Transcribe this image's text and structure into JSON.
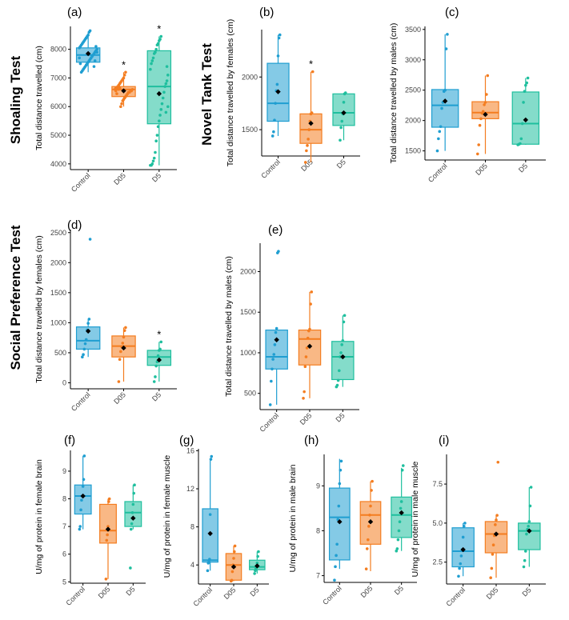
{
  "figure": {
    "row_titles": [
      "Shoaling Test",
      "Novel Tank Test",
      "Social Preference Test"
    ]
  },
  "colors": {
    "Control": "#1F9ED1",
    "D05": "#F47D20",
    "D5": "#1FBF9E",
    "axis": "#000000",
    "mean_marker": "#000000"
  },
  "chart_data": [
    {
      "id": "a",
      "type": "box",
      "panel_label": "(a)",
      "ylabel": "Total distance travelled (cm)",
      "ylim": [
        3800,
        8800
      ],
      "yticks": [
        4000,
        5000,
        6000,
        7000,
        8000
      ],
      "categories": [
        "Control",
        "D05",
        "D5"
      ],
      "boxes": [
        {
          "name": "Control",
          "min": 7200,
          "q1": 7550,
          "median": 7800,
          "q3": 8050,
          "max": 8600,
          "mean": 7850,
          "points": [
            8650,
            8600,
            8500,
            8450,
            8400,
            8350,
            8300,
            8250,
            8200,
            8150,
            8100,
            8050,
            8000,
            7950,
            7900,
            7850,
            7800,
            7750,
            7700,
            7650,
            7600,
            7550,
            7500,
            7450,
            7400,
            7350,
            7300,
            7250,
            7200,
            7500,
            7700,
            7900,
            8100,
            7600,
            7400
          ]
        },
        {
          "name": "D05",
          "min": 6000,
          "q1": 6350,
          "median": 6600,
          "q3": 6700,
          "max": 7200,
          "mean": 6550,
          "sig": "*",
          "points": [
            7200,
            7100,
            7000,
            6950,
            6900,
            6850,
            6800,
            6750,
            6700,
            6650,
            6650,
            6600,
            6600,
            6550,
            6550,
            6500,
            6500,
            6450,
            6400,
            6350,
            6300,
            6250,
            6200,
            6100,
            6000,
            6650,
            6600,
            6700,
            6450,
            6550
          ]
        },
        {
          "name": "D5",
          "min": 3950,
          "q1": 5400,
          "median": 6700,
          "q3": 7950,
          "max": 8450,
          "mean": 6450,
          "sig": "*",
          "points": [
            8450,
            8350,
            8300,
            8200,
            8150,
            8000,
            7900,
            7850,
            7700,
            7600,
            7500,
            7300,
            7100,
            6900,
            6800,
            6700,
            6500,
            6300,
            6100,
            5900,
            5700,
            5500,
            5300,
            5000,
            4800,
            4400,
            4200,
            4100,
            4000,
            3950,
            3950,
            6000,
            7400,
            5800
          ]
        }
      ]
    },
    {
      "id": "b",
      "type": "box",
      "panel_label": "(b)",
      "ylabel": "Total distance travelled by females (cm)",
      "ylim": [
        1250,
        2450
      ],
      "yticks": [
        1500,
        2000
      ],
      "categories": [
        "Control",
        "D05",
        "D5"
      ],
      "boxes": [
        {
          "name": "Control",
          "min": 1440,
          "q1": 1580,
          "median": 1750,
          "q3": 2130,
          "max": 2400,
          "mean": 1860,
          "points": [
            2400,
            2370,
            2200,
            1930,
            1870,
            1750,
            1590,
            1480,
            1440
          ]
        },
        {
          "name": "D05",
          "min": 1190,
          "q1": 1370,
          "median": 1500,
          "q3": 1650,
          "max": 2050,
          "mean": 1560,
          "sig": "*",
          "points": [
            2050,
            1660,
            1650,
            1580,
            1500,
            1410,
            1350,
            1300,
            1190
          ]
        },
        {
          "name": "D5",
          "min": 1400,
          "q1": 1540,
          "median": 1660,
          "q3": 1840,
          "max": 1850,
          "mean": 1660,
          "points": [
            1850,
            1840,
            1760,
            1650,
            1580,
            1520,
            1400
          ]
        }
      ]
    },
    {
      "id": "c",
      "type": "box",
      "panel_label": "(c)",
      "ylabel": "Total distance travelled by males (cm)",
      "ylim": [
        1350,
        3550
      ],
      "yticks": [
        1500,
        2000,
        2500,
        3000,
        3500
      ],
      "categories": [
        "Control",
        "D05",
        "D5"
      ],
      "boxes": [
        {
          "name": "Control",
          "min": 1500,
          "q1": 1890,
          "median": 2250,
          "q3": 2510,
          "max": 3420,
          "mean": 2320,
          "points": [
            3420,
            3180,
            2500,
            2480,
            2300,
            2200,
            1900,
            1820,
            1700,
            1500
          ]
        },
        {
          "name": "D05",
          "min": 1450,
          "q1": 2030,
          "median": 2130,
          "q3": 2310,
          "max": 2740,
          "mean": 2100,
          "points": [
            2740,
            2430,
            2300,
            2260,
            2150,
            2120,
            2030,
            1920,
            1600,
            1450
          ]
        },
        {
          "name": "D5",
          "min": 1600,
          "q1": 1610,
          "median": 1950,
          "q3": 2470,
          "max": 2700,
          "mean": 2010,
          "points": [
            2700,
            2620,
            2580,
            2480,
            2300,
            1950,
            1700,
            1620,
            1610,
            1600
          ]
        }
      ]
    },
    {
      "id": "d",
      "type": "box",
      "panel_label": "(d)",
      "ylabel": "Total distance travelled by females (cm)",
      "ylim": [
        -100,
        2550
      ],
      "yticks": [
        0,
        500,
        1000,
        1500,
        2000,
        2500
      ],
      "categories": [
        "Control",
        "D05",
        "D5"
      ],
      "boxes": [
        {
          "name": "Control",
          "min": 430,
          "q1": 560,
          "median": 700,
          "q3": 930,
          "max": 1060,
          "mean": 860,
          "points": [
            2390,
            1060,
            990,
            880,
            720,
            650,
            560,
            470,
            430
          ]
        },
        {
          "name": "D05",
          "min": 20,
          "q1": 430,
          "median": 610,
          "q3": 780,
          "max": 920,
          "mean": 580,
          "points": [
            920,
            870,
            760,
            660,
            600,
            520,
            390,
            20
          ]
        },
        {
          "name": "D5",
          "min": 20,
          "q1": 290,
          "median": 430,
          "q3": 540,
          "max": 680,
          "mean": 380,
          "sig": "*",
          "points": [
            680,
            560,
            540,
            450,
            350,
            280,
            100,
            20
          ]
        }
      ]
    },
    {
      "id": "e",
      "type": "box",
      "panel_label": "(e)",
      "ylabel": "Total distance travelled by males (cm)",
      "ylim": [
        300,
        2350
      ],
      "yticks": [
        500,
        1000,
        1500,
        2000
      ],
      "categories": [
        "Control",
        "D05",
        "D5"
      ],
      "boxes": [
        {
          "name": "Control",
          "min": 360,
          "q1": 800,
          "median": 950,
          "q3": 1280,
          "max": 1300,
          "mean": 1160,
          "points": [
            2250,
            2230,
            1300,
            1250,
            1100,
            980,
            920,
            800,
            650,
            360
          ]
        },
        {
          "name": "D05",
          "min": 440,
          "q1": 850,
          "median": 1170,
          "q3": 1280,
          "max": 1750,
          "mean": 1080,
          "points": [
            1750,
            1600,
            1290,
            1270,
            1180,
            1060,
            950,
            830,
            520,
            440
          ]
        },
        {
          "name": "D5",
          "min": 580,
          "q1": 670,
          "median": 950,
          "q3": 1140,
          "max": 1460,
          "mean": 950,
          "points": [
            1460,
            1380,
            1150,
            1100,
            1000,
            950,
            780,
            660,
            600,
            580
          ]
        }
      ]
    },
    {
      "id": "f",
      "type": "box",
      "panel_label": "(f)",
      "ylabel": "U/mg of protein in female brain",
      "ylim": [
        4.95,
        9.75
      ],
      "yticks": [
        5,
        6,
        7,
        8,
        9
      ],
      "categories": [
        "Control",
        "D05",
        "D5"
      ],
      "boxes": [
        {
          "name": "Control",
          "min": 6.9,
          "q1": 7.45,
          "median": 8.1,
          "q3": 8.5,
          "max": 9.55,
          "mean": 8.1,
          "points": [
            9.55,
            8.7,
            8.45,
            8.1,
            7.95,
            7.6,
            7.0,
            6.9
          ]
        },
        {
          "name": "D05",
          "min": 5.1,
          "q1": 6.4,
          "median": 6.85,
          "q3": 7.8,
          "max": 8.0,
          "mean": 6.9,
          "points": [
            8.0,
            7.9,
            7.0,
            6.7,
            6.5,
            5.1
          ]
        },
        {
          "name": "D5",
          "min": 6.9,
          "q1": 7.0,
          "median": 7.5,
          "q3": 7.9,
          "max": 8.5,
          "mean": 7.3,
          "points": [
            8.5,
            8.2,
            7.8,
            7.5,
            7.1,
            6.9,
            5.5
          ]
        }
      ]
    },
    {
      "id": "g",
      "type": "box",
      "panel_label": "(g)",
      "ylabel": "U/mg of protein in female  muscle",
      "ylim": [
        2.0,
        16.2
      ],
      "yticks": [
        4,
        8,
        12,
        16
      ],
      "categories": [
        "Control",
        "D05",
        "D5"
      ],
      "boxes": [
        {
          "name": "Control",
          "min": 3.4,
          "q1": 4.3,
          "median": 4.5,
          "q3": 9.9,
          "max": 15.1,
          "mean": 7.3,
          "points": [
            15.4,
            15.1,
            9.3,
            4.6,
            4.4,
            4.2,
            3.4
          ]
        },
        {
          "name": "D05",
          "min": 2.3,
          "q1": 2.4,
          "median": 4.0,
          "q3": 5.2,
          "max": 6.0,
          "mean": 3.8,
          "points": [
            6.0,
            5.4,
            4.7,
            4.0,
            3.3,
            2.4,
            2.3
          ]
        },
        {
          "name": "D5",
          "min": 3.1,
          "q1": 3.5,
          "median": 3.8,
          "q3": 4.5,
          "max": 5.4,
          "mean": 3.9,
          "points": [
            5.4,
            4.9,
            4.2,
            3.9,
            3.6,
            3.4,
            3.1
          ]
        }
      ]
    },
    {
      "id": "h",
      "type": "box",
      "panel_label": "(h)",
      "ylabel": "U/mg of protein in male brain",
      "ylim": [
        6.85,
        9.7
      ],
      "yticks": [
        7,
        8,
        9
      ],
      "categories": [
        "Control",
        "D05",
        "D5"
      ],
      "boxes": [
        {
          "name": "Control",
          "min": 7.15,
          "q1": 7.35,
          "median": 8.3,
          "q3": 8.95,
          "max": 9.6,
          "mean": 8.2,
          "points": [
            9.55,
            9.35,
            9.05,
            8.55,
            8.25,
            7.7,
            7.45,
            7.2,
            6.9
          ]
        },
        {
          "name": "D05",
          "min": 7.1,
          "q1": 7.7,
          "median": 8.35,
          "q3": 8.65,
          "max": 9.1,
          "mean": 8.2,
          "points": [
            9.1,
            8.9,
            8.55,
            8.35,
            8.1,
            7.8,
            7.6,
            7.15
          ]
        },
        {
          "name": "D5",
          "min": 7.55,
          "q1": 7.85,
          "median": 8.35,
          "q3": 8.75,
          "max": 9.4,
          "mean": 8.4,
          "points": [
            9.45,
            9.35,
            8.65,
            8.5,
            8.2,
            8.0,
            7.8,
            7.6,
            7.55
          ]
        }
      ]
    },
    {
      "id": "i",
      "type": "box",
      "panel_label": "(i)",
      "ylabel": "U/mg of protein in male  muscle",
      "ylim": [
        1.1,
        9.4
      ],
      "yticks": [
        2.5,
        5.0,
        7.5
      ],
      "categories": [
        "Control",
        "D05",
        "D5"
      ],
      "boxes": [
        {
          "name": "Control",
          "min": 1.6,
          "q1": 2.2,
          "median": 3.2,
          "q3": 4.7,
          "max": 5.0,
          "mean": 3.3,
          "points": [
            5.0,
            4.8,
            4.1,
            3.3,
            2.9,
            2.4,
            2.1,
            1.6
          ]
        },
        {
          "name": "D05",
          "min": 1.5,
          "q1": 3.1,
          "median": 4.3,
          "q3": 5.1,
          "max": 5.5,
          "mean": 4.3,
          "points": [
            8.9,
            5.5,
            5.2,
            4.9,
            4.2,
            3.6,
            3.0,
            2.1,
            1.5
          ]
        },
        {
          "name": "D5",
          "min": 2.2,
          "q1": 3.3,
          "median": 4.5,
          "q3": 5.0,
          "max": 7.3,
          "mean": 4.5,
          "points": [
            7.3,
            6.1,
            5.1,
            4.8,
            4.6,
            4.3,
            3.2,
            2.6,
            2.2
          ]
        }
      ]
    }
  ]
}
